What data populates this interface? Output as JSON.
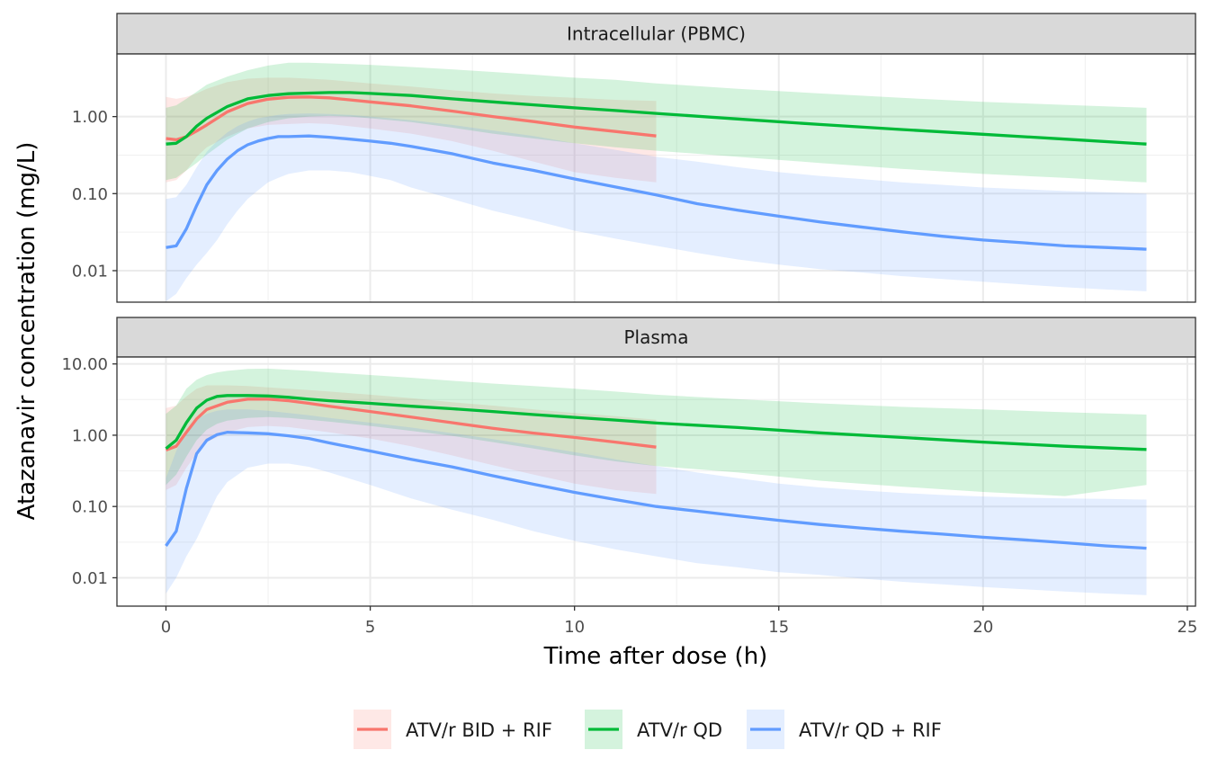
{
  "chart_data": {
    "type": "line",
    "xlabel": "Time after dose (h)",
    "ylabel": "Atazanavir concentration (mg/L)",
    "xlim": [
      -1.2,
      25.2
    ],
    "x_ticks": [
      0,
      5,
      10,
      15,
      20,
      25
    ],
    "y_scale": "log10",
    "grid": true,
    "legend_position": "bottom",
    "legend": [
      "ATV/r BID + RIF",
      "ATV/r QD",
      "ATV/r QD + RIF"
    ],
    "colors": {
      "ATV/r BID + RIF": "#F8766D",
      "ATV/r QD": "#00BA38",
      "ATV/r QD + RIF": "#619CFF"
    },
    "panels": [
      {
        "title": "Intracellular (PBMC)",
        "ylim": [
          0.0039,
          6.5
        ],
        "y_ticks": [
          {
            "value": 1,
            "label": "1.00"
          },
          {
            "value": 0.1,
            "label": "0.10"
          },
          {
            "value": 0.01,
            "label": "0.01"
          }
        ],
        "series": [
          {
            "name": "ATV/r BID + RIF",
            "x": [
              0,
              0.25,
              0.5,
              0.75,
              1,
              1.5,
              2,
              2.5,
              3,
              3.5,
              4,
              5,
              6,
              7,
              8,
              9,
              10,
              11,
              12
            ],
            "y": [
              0.52,
              0.5,
              0.55,
              0.65,
              0.78,
              1.15,
              1.48,
              1.68,
              1.78,
              1.8,
              1.75,
              1.55,
              1.38,
              1.18,
              1.0,
              0.86,
              0.73,
              0.64,
              0.56
            ],
            "lower": [
              0.14,
              0.15,
              0.2,
              0.3,
              0.4,
              0.55,
              0.7,
              0.78,
              0.8,
              0.82,
              0.8,
              0.7,
              0.6,
              0.48,
              0.36,
              0.26,
              0.19,
              0.16,
              0.14
            ],
            "upper": [
              1.8,
              1.7,
              1.8,
              2.0,
              2.3,
              2.8,
              3.1,
              3.2,
              3.2,
              3.1,
              3.0,
              2.7,
              2.45,
              2.2,
              2.0,
              1.85,
              1.75,
              1.65,
              1.6
            ]
          },
          {
            "name": "ATV/r QD",
            "x": [
              0,
              0.25,
              0.5,
              0.75,
              1,
              1.5,
              2,
              2.5,
              3,
              3.5,
              4,
              4.5,
              5,
              6,
              7,
              8,
              9,
              10,
              11,
              12,
              14,
              16,
              18,
              20,
              22,
              24
            ],
            "y": [
              0.44,
              0.45,
              0.55,
              0.75,
              0.95,
              1.35,
              1.7,
              1.88,
              1.98,
              2.02,
              2.05,
              2.05,
              2.0,
              1.88,
              1.7,
              1.55,
              1.42,
              1.3,
              1.2,
              1.1,
              0.93,
              0.79,
              0.68,
              0.59,
              0.51,
              0.44
            ],
            "lower": [
              0.15,
              0.16,
              0.2,
              0.25,
              0.32,
              0.5,
              0.7,
              0.85,
              0.95,
              1.0,
              1.02,
              1.0,
              0.95,
              0.85,
              0.72,
              0.6,
              0.52,
              0.45,
              0.4,
              0.36,
              0.3,
              0.25,
              0.21,
              0.18,
              0.16,
              0.14
            ],
            "upper": [
              1.3,
              1.4,
              1.7,
              2.1,
              2.6,
              3.3,
              4.0,
              4.6,
              5.0,
              5.0,
              4.9,
              4.8,
              4.7,
              4.4,
              4.1,
              3.8,
              3.5,
              3.2,
              3.0,
              2.7,
              2.3,
              2.0,
              1.75,
              1.55,
              1.42,
              1.3
            ]
          },
          {
            "name": "ATV/r QD + RIF",
            "x": [
              0,
              0.25,
              0.5,
              0.75,
              1,
              1.25,
              1.5,
              1.75,
              2,
              2.25,
              2.5,
              2.75,
              3,
              3.5,
              4,
              4.5,
              5,
              5.5,
              6,
              7,
              8,
              9,
              10,
              11,
              12,
              13,
              14,
              15,
              16,
              17,
              18,
              19,
              20,
              21,
              22,
              23,
              24
            ],
            "y": [
              0.02,
              0.021,
              0.035,
              0.07,
              0.13,
              0.2,
              0.28,
              0.36,
              0.43,
              0.48,
              0.52,
              0.55,
              0.55,
              0.56,
              0.54,
              0.51,
              0.48,
              0.45,
              0.41,
              0.33,
              0.25,
              0.2,
              0.155,
              0.122,
              0.096,
              0.074,
              0.061,
              0.051,
              0.043,
              0.037,
              0.032,
              0.028,
              0.025,
              0.023,
              0.021,
              0.02,
              0.019
            ],
            "lower": [
              0.004,
              0.005,
              0.008,
              0.012,
              0.017,
              0.025,
              0.04,
              0.06,
              0.085,
              0.11,
              0.14,
              0.16,
              0.18,
              0.2,
              0.2,
              0.19,
              0.17,
              0.15,
              0.12,
              0.085,
              0.06,
              0.045,
              0.033,
              0.026,
              0.021,
              0.017,
              0.014,
              0.012,
              0.0105,
              0.0095,
              0.0085,
              0.0078,
              0.0072,
              0.0066,
              0.0061,
              0.0057,
              0.0054
            ],
            "upper": [
              0.085,
              0.09,
              0.13,
              0.22,
              0.35,
              0.48,
              0.62,
              0.75,
              0.86,
              0.95,
              1.0,
              1.05,
              1.08,
              1.1,
              1.08,
              1.05,
              1.0,
              0.95,
              0.9,
              0.78,
              0.66,
              0.56,
              0.45,
              0.37,
              0.3,
              0.26,
              0.22,
              0.19,
              0.17,
              0.155,
              0.14,
              0.13,
              0.12,
              0.114,
              0.108,
              0.104,
              0.1
            ]
          }
        ]
      },
      {
        "title": "Plasma",
        "ylim": [
          0.004,
          12.5
        ],
        "y_ticks": [
          {
            "value": 10,
            "label": "10.00"
          },
          {
            "value": 1,
            "label": "1.00"
          },
          {
            "value": 0.1,
            "label": "0.10"
          },
          {
            "value": 0.01,
            "label": "0.01"
          }
        ],
        "series": [
          {
            "name": "ATV/r BID + RIF",
            "x": [
              0,
              0.25,
              0.5,
              0.75,
              1,
              1.5,
              2,
              2.5,
              3,
              3.5,
              4,
              5,
              6,
              7,
              8,
              9,
              10,
              11,
              12
            ],
            "y": [
              0.62,
              0.7,
              1.1,
              1.7,
              2.3,
              2.9,
              3.2,
              3.2,
              3.05,
              2.8,
              2.55,
              2.15,
              1.8,
              1.5,
              1.25,
              1.07,
              0.93,
              0.8,
              0.68
            ],
            "lower": [
              0.17,
              0.2,
              0.35,
              0.55,
              0.8,
              1.1,
              1.3,
              1.35,
              1.3,
              1.2,
              1.1,
              0.9,
              0.7,
              0.52,
              0.38,
              0.28,
              0.21,
              0.17,
              0.15
            ],
            "upper": [
              2.4,
              2.6,
              3.5,
              4.5,
              5.0,
              5.0,
              4.9,
              4.7,
              4.5,
              4.3,
              4.1,
              3.7,
              3.3,
              2.9,
              2.6,
              2.3,
              2.05,
              1.85,
              1.65
            ]
          },
          {
            "name": "ATV/r QD",
            "x": [
              0,
              0.25,
              0.5,
              0.75,
              1,
              1.25,
              1.5,
              2,
              2.5,
              3,
              3.5,
              4,
              5,
              6,
              7,
              8,
              9,
              10,
              11,
              12,
              14,
              16,
              18,
              20,
              22,
              24
            ],
            "y": [
              0.65,
              0.85,
              1.5,
              2.4,
              3.1,
              3.5,
              3.6,
              3.6,
              3.55,
              3.4,
              3.2,
              3.05,
              2.8,
              2.55,
              2.35,
              2.15,
              1.95,
              1.78,
              1.63,
              1.48,
              1.28,
              1.08,
              0.93,
              0.8,
              0.7,
              0.63
            ],
            "lower": [
              0.2,
              0.28,
              0.5,
              0.85,
              1.2,
              1.45,
              1.6,
              1.75,
              1.8,
              1.75,
              1.65,
              1.55,
              1.35,
              1.15,
              0.98,
              0.8,
              0.65,
              0.52,
              0.43,
              0.37,
              0.3,
              0.23,
              0.19,
              0.16,
              0.14,
              0.2
            ],
            "upper": [
              2.0,
              2.6,
              4.5,
              6.0,
              7.0,
              7.6,
              8.0,
              8.5,
              8.6,
              8.3,
              8.0,
              7.6,
              7.0,
              6.4,
              5.8,
              5.3,
              4.9,
              4.5,
              4.1,
              3.7,
              3.2,
              2.8,
              2.5,
              2.3,
              2.1,
              1.95
            ]
          },
          {
            "name": "ATV/r QD + RIF",
            "x": [
              0,
              0.25,
              0.5,
              0.75,
              1,
              1.25,
              1.5,
              2,
              2.5,
              3,
              3.5,
              4,
              5,
              6,
              7,
              8,
              9,
              10,
              11,
              12,
              13,
              14,
              15,
              16,
              17,
              18,
              19,
              20,
              21,
              22,
              23,
              24
            ],
            "y": [
              0.028,
              0.045,
              0.18,
              0.55,
              0.85,
              1.02,
              1.1,
              1.08,
              1.05,
              0.98,
              0.9,
              0.78,
              0.6,
              0.46,
              0.36,
              0.27,
              0.205,
              0.158,
              0.125,
              0.1,
              0.086,
              0.074,
              0.064,
              0.056,
              0.05,
              0.045,
              0.041,
              0.037,
              0.034,
              0.031,
              0.028,
              0.026
            ],
            "lower": [
              0.006,
              0.01,
              0.02,
              0.035,
              0.07,
              0.14,
              0.22,
              0.35,
              0.4,
              0.4,
              0.36,
              0.3,
              0.2,
              0.13,
              0.09,
              0.065,
              0.045,
              0.033,
              0.025,
              0.02,
              0.016,
              0.014,
              0.012,
              0.011,
              0.0098,
              0.0088,
              0.0081,
              0.0074,
              0.0069,
              0.0064,
              0.006,
              0.0057
            ],
            "upper": [
              0.25,
              0.6,
              1.2,
              1.7,
              2.0,
              2.2,
              2.3,
              2.3,
              2.2,
              2.05,
              1.9,
              1.75,
              1.5,
              1.28,
              1.07,
              0.88,
              0.72,
              0.58,
              0.46,
              0.37,
              0.3,
              0.25,
              0.21,
              0.185,
              0.168,
              0.155,
              0.145,
              0.138,
              0.133,
              0.13,
              0.128,
              0.125
            ]
          }
        ]
      }
    ]
  }
}
